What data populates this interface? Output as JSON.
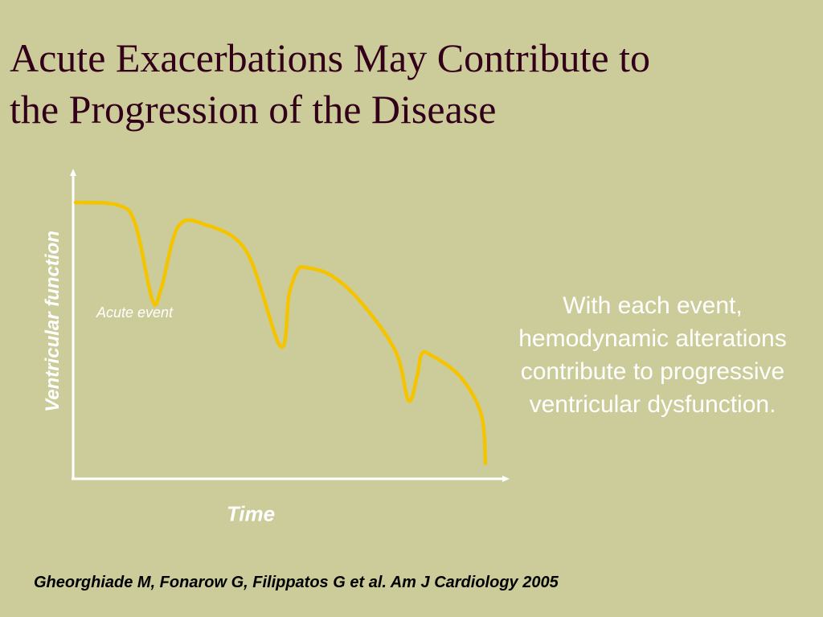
{
  "slide": {
    "title_line1": "Acute Exacerbations May Contribute to",
    "title_line2": "the Progression of the Disease",
    "note": "With each event, hemodynamic alterations contribute to progressive ventricular dysfunction.",
    "citation": "Gheorghiade M, Fonarow G, Filippatos G et al. Am J Cardiology 2005"
  },
  "colors": {
    "background": "#cccc9a",
    "title": "#33001a",
    "curve": "#f5c400",
    "axis": "#ffffff"
  },
  "chart_data": {
    "type": "line",
    "title": "",
    "xlabel": "Time",
    "ylabel": "Ventricular function",
    "annotation": "Acute event",
    "grid": false,
    "series": [
      {
        "x": [
          0,
          10,
          14,
          18,
          20,
          24,
          30,
          40,
          48,
          50,
          52,
          54,
          60,
          67,
          75,
          78,
          80,
          81,
          83,
          90,
          95,
          96
        ],
        "y": [
          100,
          99,
          92,
          64,
          68,
          91,
          92,
          82,
          47,
          66,
          75,
          76,
          73,
          63,
          45,
          27,
          36,
          44,
          44,
          36,
          22,
          4
        ]
      }
    ]
  }
}
